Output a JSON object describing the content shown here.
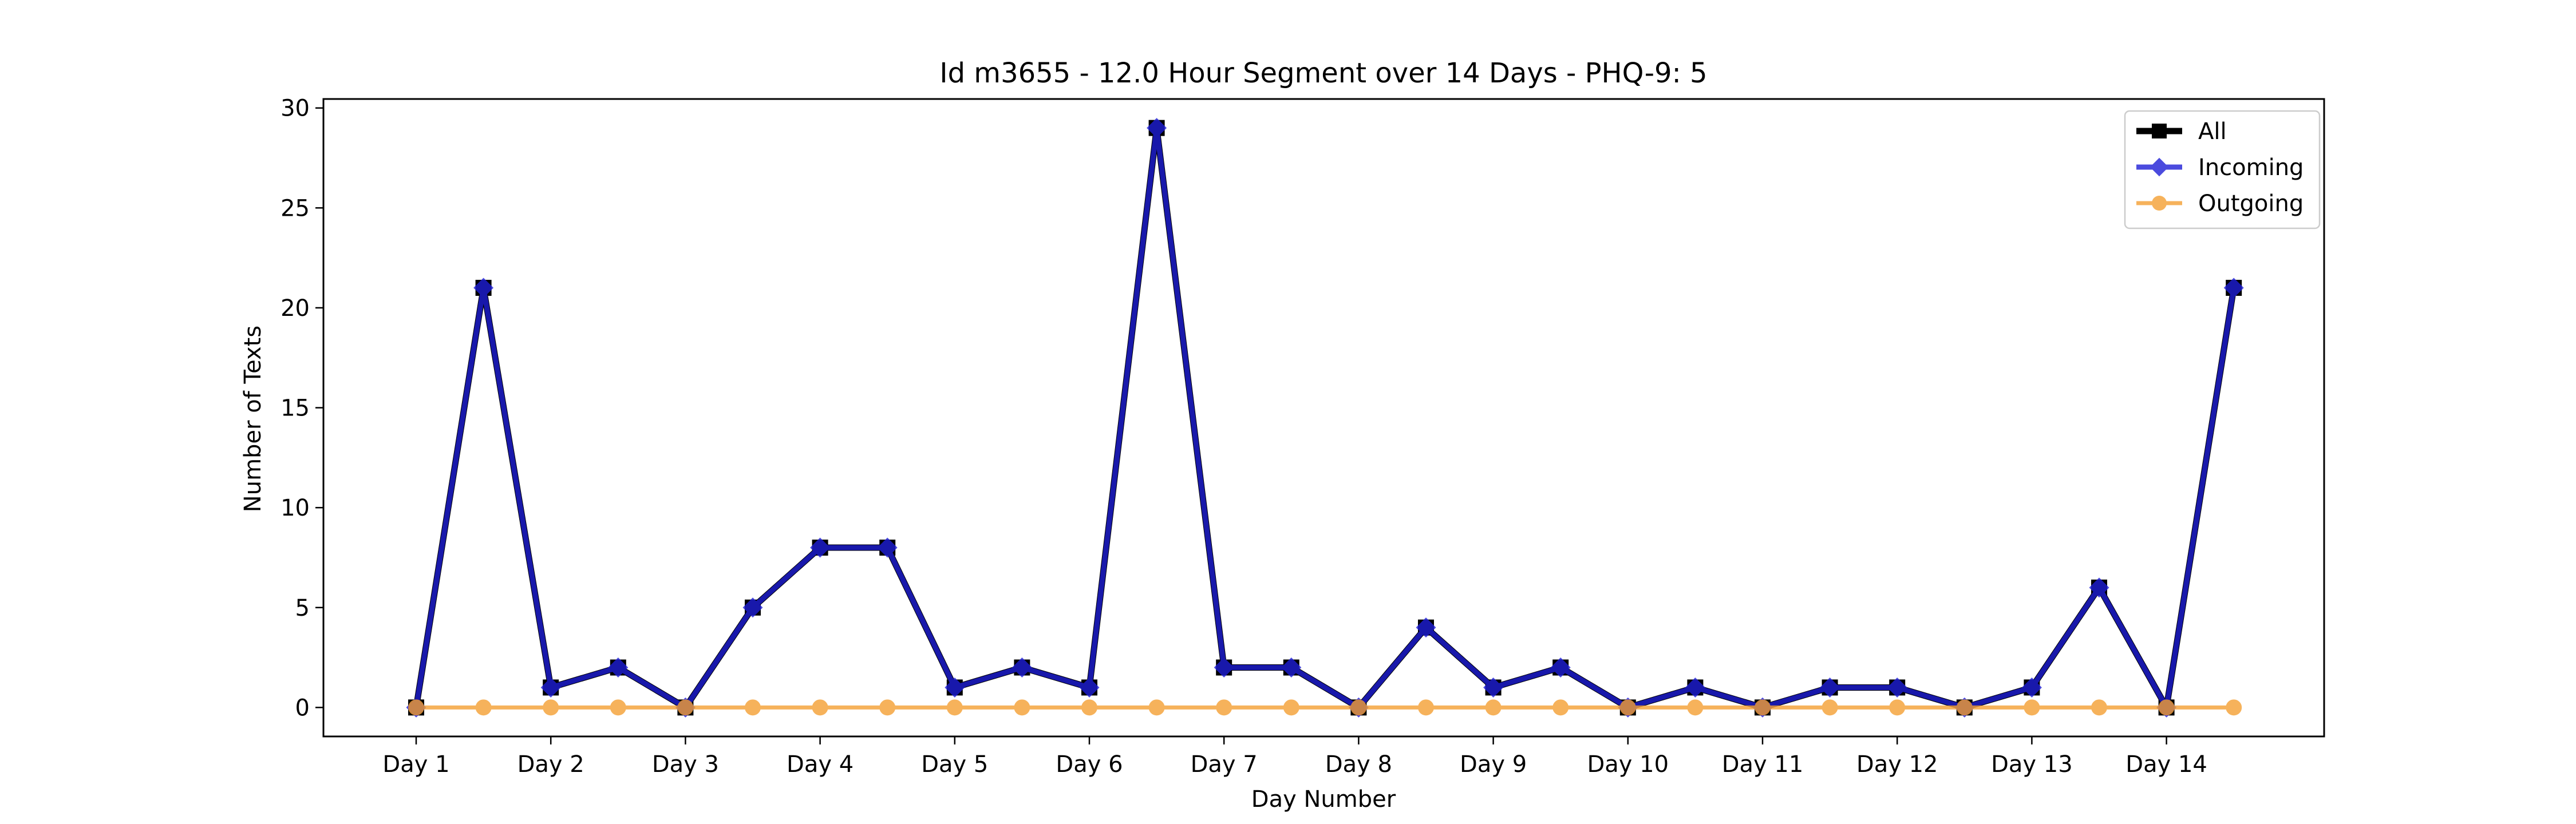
{
  "chart_data": {
    "type": "line",
    "title": "Id m3655 - 12.0 Hour Segment over 14 Days - PHQ-9: 5",
    "xlabel": "Day Number",
    "ylabel": "Number of Texts",
    "ylim": [
      -1.45,
      30.45
    ],
    "yticks": [
      0,
      5,
      10,
      15,
      20,
      25,
      30
    ],
    "xtick_labels": [
      "Day 1",
      "Day 2",
      "Day 3",
      "Day 4",
      "Day 5",
      "Day 6",
      "Day 7",
      "Day 8",
      "Day 9",
      "Day 10",
      "Day 11",
      "Day 12",
      "Day 13",
      "Day 14"
    ],
    "grid": false,
    "legend_position": "top-right",
    "series": [
      {
        "name": "All",
        "color": "#000000",
        "marker": "square",
        "values": [
          0,
          21,
          1,
          2,
          0,
          5,
          8,
          8,
          1,
          2,
          1,
          29,
          2,
          2,
          0,
          4,
          1,
          2,
          0,
          1,
          0,
          1,
          1,
          0,
          1,
          6,
          0,
          21
        ]
      },
      {
        "name": "Incoming",
        "color": "#1f1fd6",
        "marker": "diamond",
        "values": [
          0,
          21,
          1,
          2,
          0,
          5,
          8,
          8,
          1,
          2,
          1,
          29,
          2,
          2,
          0,
          4,
          1,
          2,
          0,
          1,
          0,
          1,
          1,
          0,
          1,
          6,
          0,
          21
        ]
      },
      {
        "name": "Outgoing",
        "color": "#f5a033",
        "marker": "circle",
        "values": [
          0,
          0,
          0,
          0,
          0,
          0,
          0,
          0,
          0,
          0,
          0,
          0,
          0,
          0,
          0,
          0,
          0,
          0,
          0,
          0,
          0,
          0,
          0,
          0,
          0,
          0,
          0,
          0
        ]
      }
    ]
  }
}
